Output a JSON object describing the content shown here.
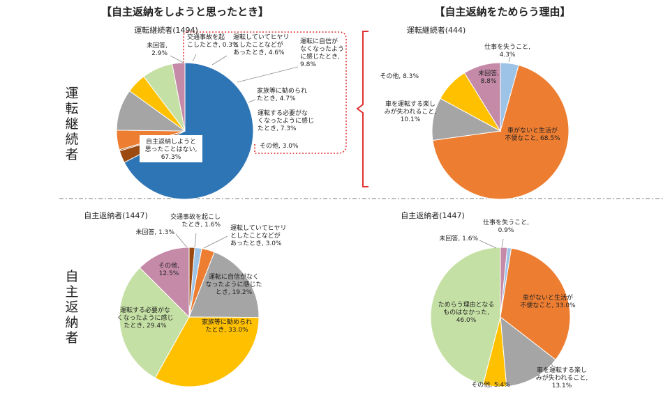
{
  "headers": {
    "left": "【自主返納をしようと思ったとき】",
    "right": "【自主返納をためらう理由】"
  },
  "rows": {
    "top": "運転継続者",
    "bottom": "自主返納者"
  },
  "colors": {
    "blue": "#2e75b6",
    "orange": "#ed7d31",
    "gray": "#a5a5a5",
    "yellow": "#ffc000",
    "light_green": "#c5e0a4",
    "pink": "#c48aa8",
    "light_blue": "#9dc3e6",
    "brown": "#9b4a12",
    "bracket_red": "#e03030"
  },
  "chart_data": [
    {
      "type": "pie",
      "title": "運転継続者(1494)",
      "slices": [
        {
          "label": "自主返納しようと思ったことはない",
          "value": 67.3,
          "text": "自主返納しようと\n思ったことはない,\n67.3%"
        },
        {
          "label": "交通事故を起こしたとき",
          "value": 0.3,
          "text": "交通事故を起\nこしたとき, 0.3%"
        },
        {
          "label": "運転していてヒヤリとしたことなどがあったとき",
          "value": 4.6,
          "text": "運転していてヒヤリ\nとしたことなどが\nあったとき, 4.6%"
        },
        {
          "label": "運転に自信がなくなったように感じたとき",
          "value": 9.8,
          "text": "運転に自信が\nなくなったよう\nに感じたとき,\n9.8%"
        },
        {
          "label": "家族等に勧められたとき",
          "value": 4.7,
          "text": "家族等に勧められ\nたとき, 4.7%"
        },
        {
          "label": "運転する必要がなくなったように感じたとき",
          "value": 7.3,
          "text": "運転する必要がな\nくなったように感じ\nたとき, 7.3%"
        },
        {
          "label": "その他",
          "value": 3.0,
          "text": "その他, 3.0%"
        },
        {
          "label": "未回答",
          "value": 2.9,
          "text": "未回答,\n2.9%"
        }
      ]
    },
    {
      "type": "pie",
      "title": "運転継続者(444)",
      "slices": [
        {
          "label": "仕事を失うこと",
          "value": 4.3,
          "text": "仕事を失うこと,\n4.3%"
        },
        {
          "label": "車がないと生活が不便なこと",
          "value": 68.5,
          "text": "車がないと生活が\n不便なこと, 68.5%"
        },
        {
          "label": "車を運転する楽しみが失われること",
          "value": 10.1,
          "text": "車を運転する楽し\nみが失われること,\n10.1%"
        },
        {
          "label": "その他",
          "value": 8.3,
          "text": "その他, 8.3%"
        },
        {
          "label": "未回答",
          "value": 8.8,
          "text": "未回答,\n8.8%"
        }
      ]
    },
    {
      "type": "pie",
      "title": "自主返納者(1447)",
      "slices": [
        {
          "label": "交通事故を起こしたとき",
          "value": 1.6,
          "text": "交通事故を起こし\nたとき, 1.6%"
        },
        {
          "label": "運転していてヒヤリとしたことなどがあったとき",
          "value": 3.0,
          "text": "運転していてヒヤリ\nとしたことなどが\nあったとき, 3.0%"
        },
        {
          "label": "運転に自信がなくなったように感じたとき",
          "value": 19.2,
          "text": "運転に自信がなく\nなったように感じた\nとき, 19.2%"
        },
        {
          "label": "家族等に勧められたとき",
          "value": 33.0,
          "text": "家族等に勧められ\nたとき, 33.0%"
        },
        {
          "label": "運転する必要がなくなったように感じたとき",
          "value": 29.4,
          "text": "運転する必要がな\nくなったように感じ\nたとき, 29.4%"
        },
        {
          "label": "その他",
          "value": 12.5,
          "text": "その他,\n12.5%"
        },
        {
          "label": "未回答",
          "value": 1.3,
          "text": "未回答, 1.3%"
        }
      ]
    },
    {
      "type": "pie",
      "title": "自主返納者(1447)",
      "slices": [
        {
          "label": "仕事を失うこと",
          "value": 0.9,
          "text": "仕事を失うこと,\n0.9%"
        },
        {
          "label": "車がないと生活が不便なこと",
          "value": 33.0,
          "text": "車がないと生活が\n不便なこと, 33.0%"
        },
        {
          "label": "車を運転する楽しみが失われること",
          "value": 13.1,
          "text": "車を運転する楽し\nみが失われること,\n13.1%"
        },
        {
          "label": "その他",
          "value": 5.4,
          "text": "その他, 5.4%"
        },
        {
          "label": "ためらう理由となるものはなかった",
          "value": 46.0,
          "text": "ためらう理由となる\nものはなかった,\n46.0%"
        },
        {
          "label": "未回答",
          "value": 1.6,
          "text": "未回答, 1.6%"
        }
      ]
    }
  ]
}
